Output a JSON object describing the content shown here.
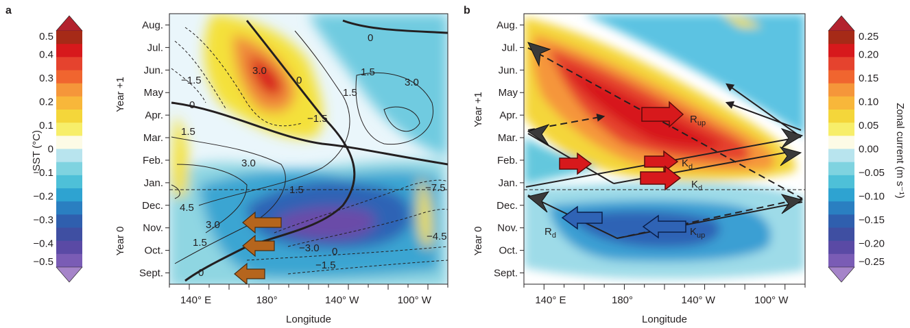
{
  "chart_data": [
    {
      "panel": "a",
      "type": "heatmap",
      "xlabel": "Longitude",
      "x_ticks": [
        "140° E",
        "180°",
        "140° W",
        "100° W"
      ],
      "y_ticks": [
        "Aug.",
        "Jul.",
        "Jun.",
        "May",
        "Apr.",
        "Mar.",
        "Feb.",
        "Jan.",
        "Dec.",
        "Nov.",
        "Oct.",
        "Sept."
      ],
      "y_groups": [
        "Year +1",
        "Year 0"
      ],
      "colorbar": {
        "label": "SST (°C)",
        "ticks": [
          "0.5",
          "0.4",
          "0.3",
          "0.2",
          "0.1",
          "0",
          "−0.1",
          "−0.2",
          "−0.3",
          "−0.4",
          "−0.5"
        ],
        "range": [
          -0.5,
          0.5
        ]
      },
      "contour_labels": [
        "0",
        "1.5",
        "3.0",
        "4.5",
        "−1.5",
        "−3.0",
        "−4.5",
        "−7.5"
      ],
      "colors": {
        "strong_warm": "#d7191c",
        "warm": "#fdae61",
        "weak_warm": "#f7e33a",
        "neutral": "#fffbe0",
        "weak_cool": "#7fd3e0",
        "cool": "#2c9fd1",
        "strong_cool": "#6a4ca8",
        "arrow": "#b5651d"
      }
    },
    {
      "panel": "b",
      "type": "heatmap",
      "xlabel": "Longitude",
      "x_ticks": [
        "140° E",
        "180°",
        "140° W",
        "100° W"
      ],
      "y_ticks": [
        "Aug.",
        "Jul.",
        "Jun.",
        "May",
        "Apr.",
        "Mar.",
        "Feb.",
        "Jan.",
        "Dec.",
        "Nov.",
        "Oct.",
        "Sept."
      ],
      "y_groups": [
        "Year +1",
        "Year 0"
      ],
      "colorbar": {
        "label": "Zonal current (m s⁻¹)",
        "ticks": [
          "0.25",
          "0.20",
          "0.15",
          "0.10",
          "0.05",
          "0.00",
          "−0.05",
          "−0.10",
          "−0.15",
          "−0.20",
          "−0.25"
        ],
        "range": [
          -0.25,
          0.25
        ]
      },
      "wave_labels": [
        {
          "main": "R",
          "sub": "up"
        },
        {
          "main": "K",
          "sub": "d"
        },
        {
          "main": "K",
          "sub": "d"
        },
        {
          "main": "R",
          "sub": "d"
        },
        {
          "main": "K",
          "sub": "up"
        }
      ]
    }
  ]
}
